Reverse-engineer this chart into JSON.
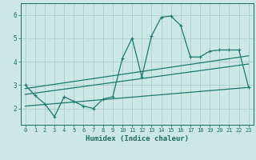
{
  "xlabel": "Humidex (Indice chaleur)",
  "ylabel": "",
  "background_color": "#cce8e4",
  "grid_color": "#aaccca",
  "line_color": "#1a7a6e",
  "xlim": [
    -0.5,
    23.5
  ],
  "ylim": [
    1.3,
    6.5
  ],
  "yticks": [
    2,
    3,
    4,
    5,
    6
  ],
  "xticks": [
    0,
    1,
    2,
    3,
    4,
    5,
    6,
    7,
    8,
    9,
    10,
    11,
    12,
    13,
    14,
    15,
    16,
    17,
    18,
    19,
    20,
    21,
    22,
    23
  ],
  "main_line_x": [
    0,
    1,
    2,
    3,
    4,
    5,
    6,
    7,
    8,
    9,
    10,
    11,
    12,
    13,
    14,
    15,
    16,
    17,
    18,
    19,
    20,
    21,
    22,
    23
  ],
  "main_line_y": [
    3.0,
    2.55,
    2.2,
    1.65,
    2.5,
    2.3,
    2.1,
    2.0,
    2.4,
    2.5,
    4.15,
    5.0,
    3.35,
    5.1,
    5.9,
    5.95,
    5.55,
    4.2,
    4.2,
    4.45,
    4.5,
    4.5,
    4.5,
    2.9
  ],
  "upper_line_x": [
    0,
    23
  ],
  "upper_line_y": [
    2.85,
    4.25
  ],
  "middle_line_x": [
    0,
    23
  ],
  "middle_line_y": [
    2.6,
    3.9
  ],
  "lower_line_x": [
    0,
    23
  ],
  "lower_line_y": [
    2.1,
    2.9
  ],
  "font_color": "#1a6e5a"
}
